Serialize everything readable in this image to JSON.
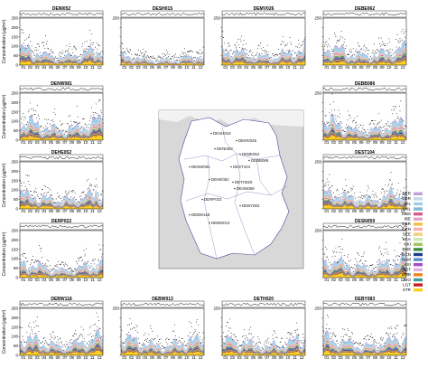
{
  "figure": {
    "ylabel": "Concentration (µg/m³)",
    "y_ticks": [
      "0",
      "50",
      "100",
      "150",
      "200",
      "250"
    ],
    "x_ticks": [
      "01",
      "02",
      "03",
      "04",
      "05",
      "06",
      "07",
      "08",
      "09",
      "10",
      "11",
      "12"
    ]
  },
  "panels_titles": [
    "DENI052",
    "DESH015",
    "DEMV026",
    "DEBE062",
    "DENW081",
    "DEBB086",
    "DEHE052",
    "DEST104",
    "DERP022",
    "DESN059",
    "DEBW118",
    "DEBW013",
    "DETH020",
    "DEBY083"
  ],
  "legend": {
    "items": [
      {
        "label": "BER",
        "color": "#c0a0d8"
      },
      {
        "label": "GER",
        "color": "#c9d6ea"
      },
      {
        "label": "ITL",
        "color": "#9dd0e8"
      },
      {
        "label": "BNL",
        "color": "#7fb8d8"
      },
      {
        "label": "MBS",
        "color": "#d85a8a"
      },
      {
        "label": "IBE",
        "color": "#e2a2c8"
      },
      {
        "label": "GBR",
        "color": "#f0c040"
      },
      {
        "label": "CEN",
        "color": "#f6b0b0"
      },
      {
        "label": "SEE",
        "color": "#f0d080"
      },
      {
        "label": "SCA",
        "color": "#cde8b0"
      },
      {
        "label": "UKI",
        "color": "#a0c860"
      },
      {
        "label": "BNS",
        "color": "#3c8c3c"
      },
      {
        "label": "OCN",
        "color": "#1a3e8c"
      },
      {
        "label": "NAM",
        "color": "#5a8ad0"
      },
      {
        "label": "ASI",
        "color": "#a64ac8"
      },
      {
        "label": "RST",
        "color": "#e0b0e0"
      },
      {
        "label": "BMB",
        "color": "#f5821e"
      },
      {
        "label": "BIO",
        "color": "#3aa0a0"
      },
      {
        "label": "LGT",
        "color": "#c82020"
      },
      {
        "label": "STR",
        "color": "#f9d020"
      }
    ]
  },
  "map": {
    "stations": [
      "DESH015",
      "DEMV026",
      "DENI052",
      "DEBE062",
      "DEBB086",
      "DENW081",
      "DEST104",
      "DEHE052",
      "DETH020",
      "DESN059",
      "DERP022",
      "DEBY083",
      "DEBW118",
      "DEBW013"
    ]
  },
  "chart_data": {
    "type": "area",
    "chart_kind": "small multiples of stacked area time series with observations (dots) and model line",
    "ylabel": "Concentration (µg/m³)",
    "ylim": [
      0,
      250
    ],
    "y_ticks": [
      0,
      50,
      100,
      150,
      200,
      250
    ],
    "x_ticks": [
      "01",
      "02",
      "03",
      "04",
      "05",
      "06",
      "07",
      "08",
      "09",
      "10",
      "11",
      "12"
    ],
    "panels": [
      {
        "name": "DENI052",
        "approx_mean_total": 60,
        "approx_peak": 150
      },
      {
        "name": "DESH015",
        "approx_mean_total": 35,
        "approx_peak": 80
      },
      {
        "name": "DEMV026",
        "approx_mean_total": 60,
        "approx_peak": 160
      },
      {
        "name": "DEBE062",
        "approx_mean_total": 70,
        "approx_peak": 170
      },
      {
        "name": "DENW081",
        "approx_mean_total": 75,
        "approx_peak": 150
      },
      {
        "name": "DEBB086",
        "approx_mean_total": 70,
        "approx_peak": 160
      },
      {
        "name": "DEHE052",
        "approx_mean_total": 60,
        "approx_peak": 140
      },
      {
        "name": "DEST104",
        "approx_mean_total": 65,
        "approx_peak": 150
      },
      {
        "name": "DERP022",
        "approx_mean_total": 55,
        "approx_peak": 140
      },
      {
        "name": "DESN059",
        "approx_mean_total": 70,
        "approx_peak": 160
      },
      {
        "name": "DEBW118",
        "approx_mean_total": 70,
        "approx_peak": 170
      },
      {
        "name": "DEBW013",
        "approx_mean_total": 65,
        "approx_peak": 160
      },
      {
        "name": "DETH020",
        "approx_mean_total": 65,
        "approx_peak": 155
      },
      {
        "name": "DEBY083",
        "approx_mean_total": 70,
        "approx_peak": 165
      }
    ],
    "series": [
      {
        "name": "BER"
      },
      {
        "name": "GER"
      },
      {
        "name": "ITL"
      },
      {
        "name": "BNL"
      },
      {
        "name": "MBS"
      },
      {
        "name": "IBE"
      },
      {
        "name": "GBR"
      },
      {
        "name": "CEN"
      },
      {
        "name": "SEE"
      },
      {
        "name": "SCA"
      },
      {
        "name": "UKI"
      },
      {
        "name": "BNS"
      },
      {
        "name": "OCN"
      },
      {
        "name": "NAM"
      },
      {
        "name": "ASI"
      },
      {
        "name": "RST"
      },
      {
        "name": "BMB"
      },
      {
        "name": "BIO"
      },
      {
        "name": "LGT"
      },
      {
        "name": "STR"
      }
    ],
    "legend_position": "right"
  }
}
